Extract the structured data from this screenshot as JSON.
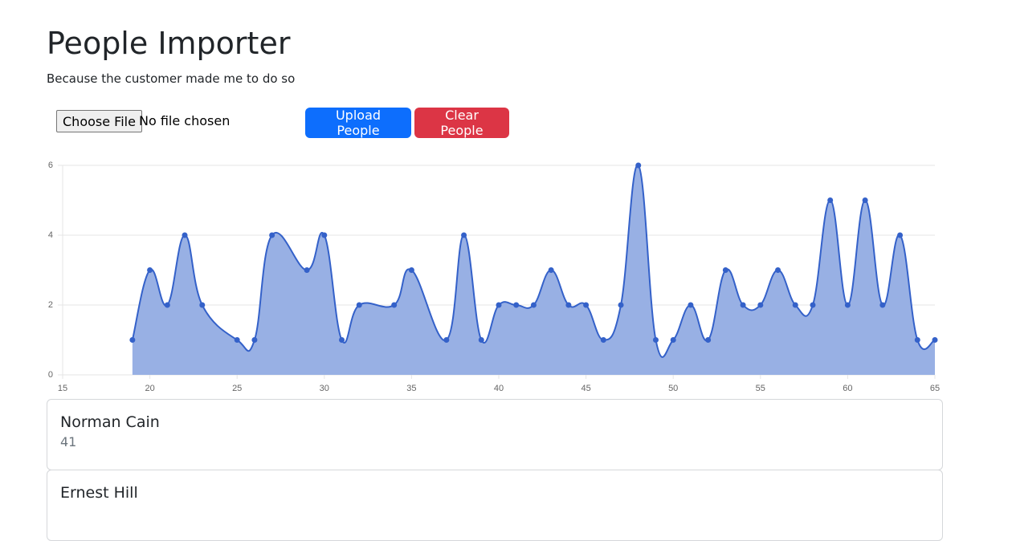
{
  "header": {
    "title": "People Importer",
    "subtitle": "Because the customer made me to do so"
  },
  "upload": {
    "choose_button": "Choose File",
    "file_status": "No file chosen",
    "upload_button": "Upload People",
    "clear_button": "Clear People"
  },
  "chart_data": {
    "type": "area",
    "x": [
      19,
      20,
      21,
      22,
      23,
      25,
      26,
      27,
      29,
      30,
      31,
      32,
      34,
      35,
      37,
      38,
      39,
      40,
      41,
      42,
      43,
      44,
      45,
      46,
      47,
      48,
      49,
      50,
      51,
      52,
      53,
      54,
      55,
      56,
      57,
      58,
      59,
      60,
      61,
      62,
      63,
      64,
      65
    ],
    "values": [
      1,
      3,
      2,
      4,
      2,
      1,
      1,
      4,
      3,
      4,
      1,
      2,
      2,
      3,
      1,
      4,
      1,
      2,
      2,
      2,
      3,
      2,
      2,
      1,
      2,
      6,
      1,
      1,
      2,
      1,
      3,
      2,
      2,
      3,
      2,
      2,
      5,
      2,
      5,
      2,
      4,
      1,
      1
    ],
    "color": "#3461c9",
    "fill": "#98b0e4",
    "xlim": [
      15,
      65
    ],
    "xticks": [
      15,
      20,
      25,
      30,
      35,
      40,
      45,
      50,
      55,
      60,
      65
    ],
    "ylim": [
      0,
      6
    ],
    "yticks": [
      0,
      2,
      4,
      6
    ],
    "grid": true
  },
  "people": [
    {
      "name": "Norman Cain",
      "age": 41
    },
    {
      "name": "Ernest Hill"
    }
  ]
}
